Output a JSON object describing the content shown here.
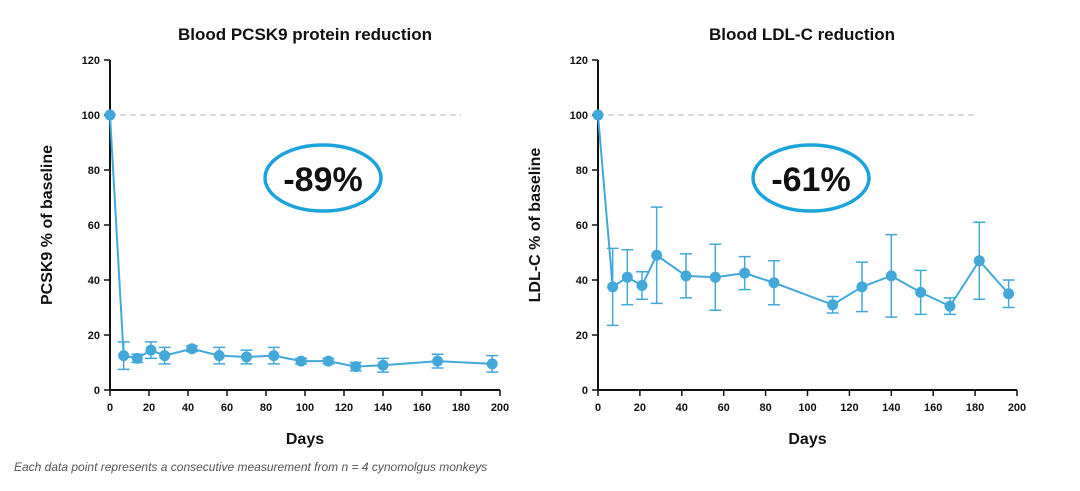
{
  "colors": {
    "series": "#42a8da",
    "axis": "#111111",
    "baseline": "#c8c8c8",
    "callout": "#1aa3dc"
  },
  "footnote": "Each data point represents a consecutive measurement from n = 4 cynomolgus monkeys",
  "chart_data": [
    {
      "type": "line",
      "title": "Blood PCSK9 protein reduction",
      "xlabel": "Days",
      "ylabel": "PCSK9 % of baseline",
      "xlim": [
        0,
        200
      ],
      "ylim": [
        0,
        120
      ],
      "xticks": [
        0,
        20,
        40,
        60,
        80,
        100,
        120,
        140,
        160,
        180,
        200
      ],
      "yticks": [
        0,
        20,
        40,
        60,
        80,
        100,
        120
      ],
      "reference_line": 100,
      "callout": "-89%",
      "grid": false,
      "series": [
        {
          "x": [
            0,
            7,
            14,
            21,
            28,
            42,
            56,
            70,
            84,
            98,
            112,
            126,
            140,
            168,
            196
          ],
          "y": [
            100,
            12.5,
            11.5,
            14.5,
            12.5,
            15,
            12.5,
            12,
            12.5,
            10.5,
            10.5,
            8.5,
            9,
            10.5,
            9.5
          ],
          "err": [
            0,
            5,
            1.5,
            3,
            3,
            1,
            3,
            2.5,
            3,
            1,
            1,
            1.5,
            2.5,
            2.5,
            3
          ]
        }
      ]
    },
    {
      "type": "line",
      "title": "Blood LDL-C reduction",
      "xlabel": "Days",
      "ylabel": "LDL-C % of baseline",
      "xlim": [
        0,
        200
      ],
      "ylim": [
        0,
        120
      ],
      "xticks": [
        0,
        20,
        40,
        60,
        80,
        100,
        120,
        140,
        160,
        180,
        200
      ],
      "yticks": [
        0,
        20,
        40,
        60,
        80,
        100,
        120
      ],
      "reference_line": 100,
      "callout": "-61%",
      "grid": false,
      "series": [
        {
          "x": [
            0,
            7,
            14,
            21,
            28,
            42,
            56,
            70,
            84,
            112,
            126,
            140,
            154,
            168,
            182,
            196
          ],
          "y": [
            100,
            37.5,
            41,
            38,
            49,
            41.5,
            41,
            42.5,
            39,
            31,
            37.5,
            41.5,
            35.5,
            30.5,
            47,
            35
          ],
          "err": [
            0,
            14,
            10,
            5,
            17.5,
            8,
            12,
            6,
            8,
            3,
            9,
            15,
            8,
            3,
            14,
            5
          ]
        }
      ]
    }
  ]
}
